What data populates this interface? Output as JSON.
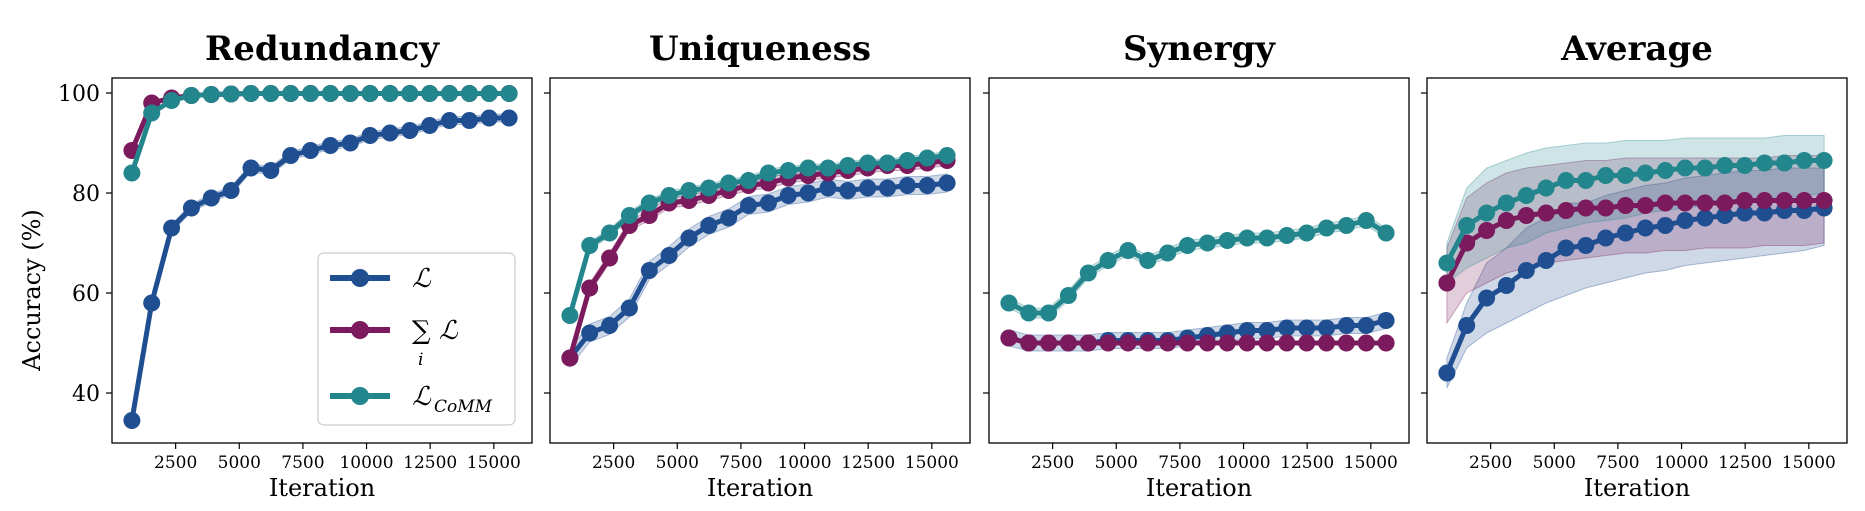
{
  "colors": {
    "L": "#1f4e91",
    "sumLi": "#7b1a5c",
    "Lcomm": "#23868d"
  },
  "ylabel": "Accuracy (%)",
  "xlabel": "Iteration",
  "legend": {
    "location": "lower-right of first panel",
    "entries": [
      {
        "key": "L",
        "text": "ℒ"
      },
      {
        "key": "sumLi",
        "text": "∑ ℒ",
        "sub": "i"
      },
      {
        "key": "Lcomm",
        "text": "ℒ",
        "sub": "CoMM"
      }
    ]
  },
  "chart_data": [
    {
      "type": "line",
      "title": "Redundancy",
      "xlabel": "Iteration",
      "ylabel": "Accuracy (%)",
      "xlim": [
        0,
        16500
      ],
      "ylim": [
        30,
        103
      ],
      "xticks": [
        "2500",
        "5000",
        "7500",
        "10000",
        "12500",
        "15000"
      ],
      "yticks": [
        "40",
        "60",
        "80",
        "100"
      ],
      "x": [
        780,
        1560,
        2340,
        3120,
        3900,
        4680,
        5460,
        6240,
        7020,
        7800,
        8580,
        9360,
        10140,
        10920,
        11700,
        12480,
        13260,
        14040,
        14820,
        15600
      ],
      "series": [
        {
          "key": "L",
          "values": [
            34.5,
            58,
            73,
            77,
            79,
            80.5,
            85,
            84.5,
            87.5,
            88.5,
            89.5,
            90,
            91.5,
            92,
            92.5,
            93.5,
            94.5,
            94.5,
            95,
            95
          ],
          "band": 0.8
        },
        {
          "key": "sumLi",
          "values": [
            88.5,
            98,
            99,
            99.5,
            99.7,
            99.8,
            99.9,
            99.9,
            99.9,
            99.9,
            99.9,
            99.9,
            99.9,
            99.9,
            99.9,
            99.9,
            99.9,
            99.9,
            99.9,
            99.9
          ],
          "band": 0.3
        },
        {
          "key": "Lcomm",
          "values": [
            84,
            96,
            98.5,
            99.5,
            99.7,
            99.8,
            99.9,
            99.9,
            99.9,
            99.9,
            99.9,
            99.9,
            99.9,
            99.9,
            99.9,
            99.9,
            99.9,
            99.9,
            99.9,
            99.9
          ],
          "band": 0.3
        }
      ]
    },
    {
      "type": "line",
      "title": "Uniqueness",
      "xlabel": "Iteration",
      "xlim": [
        0,
        16500
      ],
      "ylim": [
        30,
        103
      ],
      "xticks": [
        "2500",
        "5000",
        "7500",
        "10000",
        "12500",
        "15000"
      ],
      "x": [
        780,
        1560,
        2340,
        3120,
        3900,
        4680,
        5460,
        6240,
        7020,
        7800,
        8580,
        9360,
        10140,
        10920,
        11700,
        12480,
        13260,
        14040,
        14820,
        15600
      ],
      "series": [
        {
          "key": "L",
          "values": [
            47,
            52,
            53.5,
            57,
            64.5,
            67.5,
            71,
            73.5,
            75,
            77.5,
            78,
            79.5,
            80,
            81,
            80.5,
            81,
            81,
            81.5,
            81.5,
            82
          ],
          "band": 1.8
        },
        {
          "key": "sumLi",
          "values": [
            47,
            61,
            67,
            73.5,
            75.5,
            78,
            78.5,
            79.5,
            80.5,
            81.5,
            82,
            83,
            83.5,
            84,
            84.5,
            85,
            85.5,
            85.5,
            86,
            86.5
          ],
          "band": 1.0
        },
        {
          "key": "Lcomm",
          "values": [
            55.5,
            69.5,
            72,
            75.5,
            78,
            79.5,
            80.5,
            81,
            82,
            82.5,
            84,
            84.5,
            85,
            85,
            85.5,
            86,
            86,
            86.5,
            87,
            87.5
          ],
          "band": 0.8
        }
      ]
    },
    {
      "type": "line",
      "title": "Synergy",
      "xlabel": "Iteration",
      "xlim": [
        0,
        16500
      ],
      "ylim": [
        30,
        103
      ],
      "xticks": [
        "2500",
        "5000",
        "7500",
        "10000",
        "12500",
        "15000"
      ],
      "x": [
        780,
        1560,
        2340,
        3120,
        3900,
        4680,
        5460,
        6240,
        7020,
        7800,
        8580,
        9360,
        10140,
        10920,
        11700,
        12480,
        13260,
        14040,
        14820,
        15600
      ],
      "series": [
        {
          "key": "L",
          "values": [
            51,
            50,
            50,
            50,
            50,
            50.5,
            50.5,
            50.5,
            50.5,
            51,
            51.5,
            52,
            52.5,
            52.5,
            53,
            53,
            53,
            53.5,
            53.5,
            54.5
          ],
          "band": 1.6
        },
        {
          "key": "sumLi",
          "values": [
            51,
            50,
            50,
            50,
            50,
            50,
            50,
            50,
            50,
            50,
            50,
            50,
            50,
            50,
            50,
            50,
            50,
            50,
            50,
            50
          ],
          "band": 0.3
        },
        {
          "key": "Lcomm",
          "values": [
            58,
            56,
            56,
            59.5,
            64,
            66.5,
            68.5,
            66.5,
            68,
            69.5,
            70,
            70.5,
            71,
            71,
            71.5,
            72,
            73,
            73.5,
            74.5,
            72
          ],
          "band": 1.0
        }
      ]
    },
    {
      "type": "line",
      "title": "Average",
      "xlabel": "Iteration",
      "xlim": [
        0,
        16500
      ],
      "ylim": [
        30,
        103
      ],
      "xticks": [
        "2500",
        "5000",
        "7500",
        "10000",
        "12500",
        "15000"
      ],
      "x": [
        780,
        1560,
        2340,
        3120,
        3900,
        4680,
        5460,
        6240,
        7020,
        7800,
        8580,
        9360,
        10140,
        10920,
        11700,
        12480,
        13260,
        14040,
        14820,
        15600
      ],
      "series": [
        {
          "key": "L",
          "values": [
            44,
            53.5,
            59,
            61.5,
            64.5,
            66.5,
            69,
            69.5,
            71,
            72,
            73,
            73.5,
            74.5,
            75,
            75.5,
            76,
            76,
            76.5,
            76.5,
            77
          ],
          "band_lo": [
            41,
            49,
            52,
            54,
            56,
            58,
            59.5,
            61,
            62,
            63,
            64,
            64.5,
            65.5,
            66,
            66.5,
            67,
            67.5,
            68,
            68.5,
            69.5
          ],
          "band_hi": [
            47,
            58,
            66,
            69,
            73,
            75,
            78,
            78,
            79.5,
            80.5,
            81.5,
            82,
            83,
            83.5,
            84,
            84.5,
            84.5,
            85,
            85,
            85
          ]
        },
        {
          "key": "sumLi",
          "values": [
            62,
            70,
            72.5,
            74.5,
            75.5,
            76,
            76.5,
            77,
            77,
            77.5,
            77.5,
            78,
            78,
            78,
            78,
            78.5,
            78.5,
            78.5,
            78.5,
            78.5
          ],
          "band_lo": [
            54,
            60,
            62,
            64,
            65,
            66,
            66.5,
            67,
            67.5,
            68,
            68,
            68.5,
            68.5,
            69,
            69,
            69,
            69.5,
            69.5,
            69.5,
            70
          ],
          "band_hi": [
            69,
            79,
            82,
            84,
            85,
            85.5,
            86,
            86.5,
            86.5,
            87,
            87,
            87,
            87,
            87,
            87,
            87,
            87,
            87.5,
            87.5,
            87.5
          ]
        },
        {
          "key": "Lcomm",
          "values": [
            66,
            73.5,
            76,
            78,
            79.5,
            81,
            82.5,
            82.5,
            83.5,
            83.5,
            84,
            84.5,
            85,
            85,
            85.5,
            85.5,
            86,
            86,
            86.5,
            86.5
          ],
          "band_lo": [
            62,
            65,
            67,
            69,
            70,
            72,
            73,
            74,
            74.5,
            75,
            76,
            76.5,
            77,
            77.5,
            78,
            78,
            78.5,
            79,
            79.5,
            80
          ],
          "band_hi": [
            70,
            81,
            85,
            86.5,
            88,
            89,
            89.5,
            90,
            90,
            90.5,
            90.5,
            90.5,
            91,
            91,
            91,
            91,
            91,
            91.5,
            91.5,
            91.5
          ]
        }
      ]
    }
  ]
}
